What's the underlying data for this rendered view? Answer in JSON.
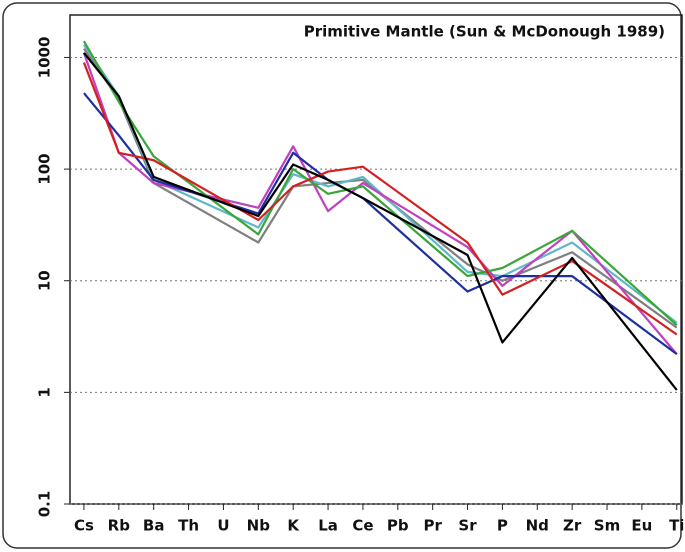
{
  "chart_data": {
    "type": "line",
    "title": "Primitive Mantle (Sun & McDonough 1989)",
    "x": [
      0,
      1,
      2,
      5,
      6,
      7,
      8,
      11,
      12,
      14,
      17
    ],
    "xlim": [
      -0.4,
      17.15
    ],
    "xticks": [
      {
        "value": 0,
        "label": "Cs"
      },
      {
        "value": 1,
        "label": "Rb"
      },
      {
        "value": 2,
        "label": "Ba"
      },
      {
        "value": 3,
        "label": "Th"
      },
      {
        "value": 4,
        "label": "U"
      },
      {
        "value": 5,
        "label": "Nb"
      },
      {
        "value": 6,
        "label": "K"
      },
      {
        "value": 7,
        "label": "La"
      },
      {
        "value": 8,
        "label": "Ce"
      },
      {
        "value": 9,
        "label": "Pb"
      },
      {
        "value": 10,
        "label": "Pr"
      },
      {
        "value": 11,
        "label": "Sr"
      },
      {
        "value": 12,
        "label": "P"
      },
      {
        "value": 13,
        "label": "Nd"
      },
      {
        "value": 14,
        "label": "Zr"
      },
      {
        "value": 15,
        "label": "Sm"
      },
      {
        "value": 16,
        "label": "Eu"
      },
      {
        "value": 17,
        "label": "Ti"
      }
    ],
    "ylim": [
      0.1,
      2400
    ],
    "yticks": [
      0.1,
      1,
      10,
      100,
      1000
    ],
    "log_y": true,
    "grid": true,
    "series": [
      {
        "color": "#7f7f7f",
        "values": [
          1200,
          420,
          75,
          22,
          70,
          75,
          80,
          14,
          10,
          18,
          3.8
        ]
      },
      {
        "color": "#5fb8c8",
        "values": [
          1300,
          450,
          80,
          30,
          90,
          70,
          85,
          12,
          11,
          22,
          4.2
        ]
      },
      {
        "color": "#c040c0",
        "values": [
          1100,
          140,
          75,
          45,
          160,
          42,
          75,
          20,
          9,
          28,
          2.2
        ]
      },
      {
        "color": "#3aa63a",
        "values": [
          1400,
          400,
          130,
          26,
          100,
          60,
          70,
          11,
          13,
          28,
          4
        ]
      },
      {
        "color": "#1f2f9f",
        "values": [
          480,
          200,
          80,
          40,
          140,
          80,
          55,
          8,
          11,
          11,
          2.2
        ]
      },
      {
        "color": "#d42020",
        "values": [
          900,
          140,
          120,
          35,
          70,
          95,
          105,
          22,
          7.5,
          15,
          3.3
        ]
      },
      {
        "color": "#000000",
        "values": [
          1100,
          450,
          85,
          38,
          110,
          80,
          55,
          17,
          2.8,
          16,
          1.05
        ]
      }
    ]
  }
}
